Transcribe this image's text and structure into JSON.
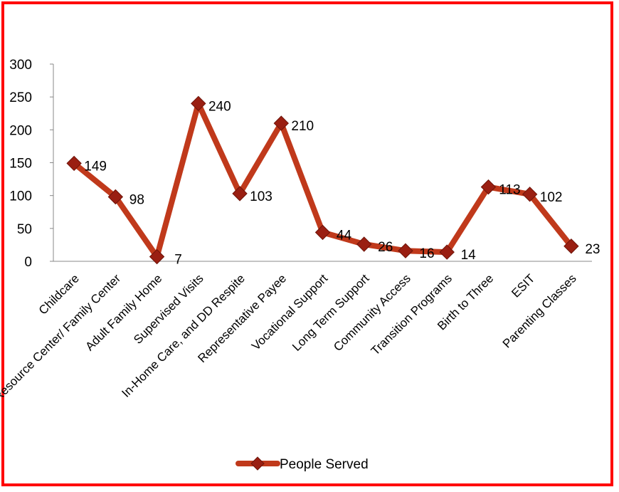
{
  "chart_data": {
    "type": "line",
    "categories": [
      "Childcare",
      "Resource Center/ Family Center",
      "Adult Family Home",
      "Supervised Visits",
      "In-Home Care, and DD Respite",
      "Representative Payee",
      "Vocational  Support",
      "Long Term Support",
      "Community Access",
      "Transition Programs",
      "Birth to Three",
      "ESIT",
      "Parenting Classes"
    ],
    "series": [
      {
        "name": "People Served",
        "values": [
          149,
          98,
          7,
          240,
          103,
          210,
          44,
          26,
          16,
          14,
          113,
          102,
          23
        ],
        "color": "#c0391b",
        "marker": "diamond"
      }
    ],
    "data_labels": [
      "149",
      "98",
      "7",
      "240",
      "103",
      "210",
      "44",
      "26",
      "16",
      "14",
      "113",
      "102",
      "23"
    ],
    "ylim": [
      0,
      300
    ],
    "yticks": [
      "0",
      "50",
      "100",
      "150",
      "200",
      "250",
      "300"
    ],
    "grid": false,
    "legend_position": "bottom",
    "frame_color": "#ff0000"
  }
}
